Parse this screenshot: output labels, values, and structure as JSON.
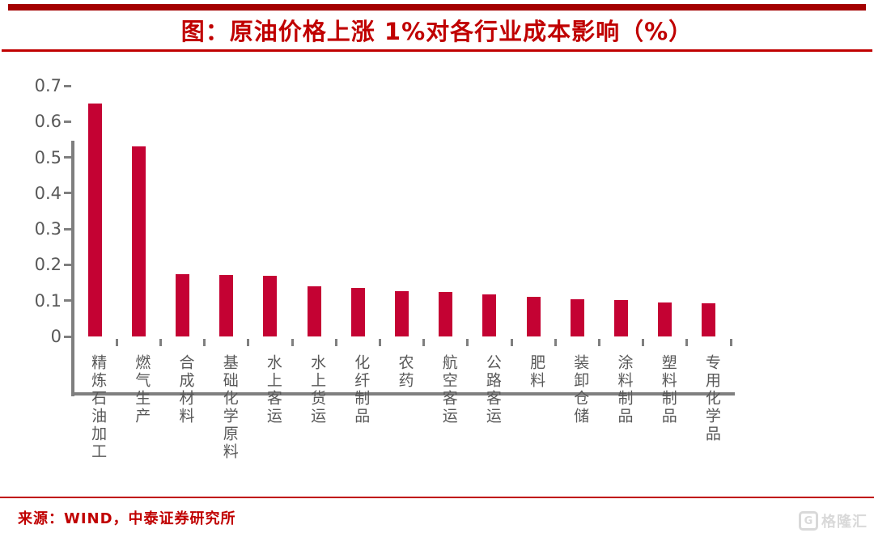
{
  "colors": {
    "bar": "#C40233",
    "title_red": "#C00000",
    "top_bar_red": "#A40000",
    "rule_red": "#C00000",
    "axis_gray": "#7F7F7F",
    "label_gray": "#595959",
    "watermark_gray": "#D9D9D9"
  },
  "chart_data": {
    "type": "bar",
    "title": "图：原油价格上涨 1%对各行业成本影响（%）",
    "categories": [
      "精炼石油加工",
      "燃气生产",
      "合成材料",
      "基础化学原料",
      "水上客运",
      "水上货运",
      "化纤制品",
      "农药",
      "航空客运",
      "公路客运",
      "肥料",
      "装卸仓储",
      "涂料制品",
      "塑料制品",
      "专用化学品"
    ],
    "values": [
      0.65,
      0.53,
      0.175,
      0.171,
      0.169,
      0.139,
      0.136,
      0.127,
      0.124,
      0.117,
      0.11,
      0.105,
      0.102,
      0.095,
      0.093
    ],
    "xlabel": "",
    "ylabel": "",
    "ylim": [
      0,
      0.7
    ],
    "yticks": [
      0,
      0.1,
      0.2,
      0.3,
      0.4,
      0.5,
      0.6,
      0.7
    ],
    "grid": false,
    "legend": "none"
  },
  "footer": {
    "source": "来源：WIND，中泰证券研究所"
  },
  "watermark": {
    "icon_letter": "G",
    "label": "格隆汇"
  }
}
